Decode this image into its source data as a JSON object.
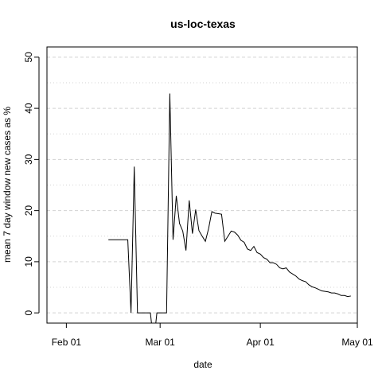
{
  "chart_data": {
    "type": "line",
    "title": "us-loc-texas",
    "xlabel": "date",
    "ylabel": "mean  7  day window new cases as %",
    "x_ticks": [
      "2020-02-01",
      "2020-03-01",
      "2020-04-01",
      "2020-05-01"
    ],
    "x_tick_labels": [
      "Feb 01",
      "Mar 01",
      "Apr 01",
      "May 01"
    ],
    "y_ticks": [
      0,
      10,
      20,
      30,
      40,
      50
    ],
    "y_tick_labels": [
      "0",
      "10",
      "20",
      "30",
      "40",
      "50"
    ],
    "xlim": [
      "2020-01-26",
      "2020-05-01"
    ],
    "ylim": [
      -2,
      52
    ],
    "grid": {
      "horizontal": true,
      "style": "dashed",
      "minor_horizontal": true
    },
    "series": [
      {
        "points": [
          [
            "2020-02-14",
            14.3
          ],
          [
            "2020-02-15",
            14.3
          ],
          [
            "2020-02-16",
            14.3
          ],
          [
            "2020-02-17",
            14.3
          ],
          [
            "2020-02-18",
            14.3
          ],
          [
            "2020-02-19",
            14.3
          ],
          [
            "2020-02-20",
            14.3
          ],
          [
            "2020-02-21",
            0
          ],
          [
            "2020-02-22",
            28.6
          ],
          [
            "2020-02-23",
            0
          ],
          [
            "2020-02-24",
            0
          ],
          [
            "2020-02-25",
            0
          ],
          [
            "2020-02-26",
            0
          ],
          [
            "2020-02-27",
            0
          ],
          [
            "2020-02-28",
            -6
          ],
          [
            "2020-02-29",
            0
          ],
          [
            "2020-03-01",
            0
          ],
          [
            "2020-03-02",
            0
          ],
          [
            "2020-03-03",
            0
          ],
          [
            "2020-03-04",
            42.9
          ],
          [
            "2020-03-05",
            14.3
          ],
          [
            "2020-03-06",
            22.9
          ],
          [
            "2020-03-07",
            17.5
          ],
          [
            "2020-03-08",
            16
          ],
          [
            "2020-03-09",
            12.2
          ],
          [
            "2020-03-10",
            22
          ],
          [
            "2020-03-11",
            15.5
          ],
          [
            "2020-03-12",
            20.2
          ],
          [
            "2020-03-13",
            16.1
          ],
          [
            "2020-03-14",
            15
          ],
          [
            "2020-03-15",
            14
          ],
          [
            "2020-03-16",
            16.5
          ],
          [
            "2020-03-17",
            19.8
          ],
          [
            "2020-03-18",
            19.5
          ],
          [
            "2020-03-19",
            19.4
          ],
          [
            "2020-03-20",
            19.3
          ],
          [
            "2020-03-21",
            14
          ],
          [
            "2020-03-22",
            15
          ],
          [
            "2020-03-23",
            16
          ],
          [
            "2020-03-24",
            15.8
          ],
          [
            "2020-03-25",
            15.2
          ],
          [
            "2020-03-26",
            14.2
          ],
          [
            "2020-03-27",
            13.8
          ],
          [
            "2020-03-28",
            12.5
          ],
          [
            "2020-03-29",
            12.2
          ],
          [
            "2020-03-30",
            13
          ],
          [
            "2020-03-31",
            11.8
          ],
          [
            "2020-04-01",
            11.5
          ],
          [
            "2020-04-02",
            10.8
          ],
          [
            "2020-04-03",
            10.5
          ],
          [
            "2020-04-04",
            9.8
          ],
          [
            "2020-04-05",
            9.8
          ],
          [
            "2020-04-06",
            9.5
          ],
          [
            "2020-04-07",
            8.8
          ],
          [
            "2020-04-08",
            8.6
          ],
          [
            "2020-04-09",
            8.8
          ],
          [
            "2020-04-10",
            8
          ],
          [
            "2020-04-11",
            7.6
          ],
          [
            "2020-04-12",
            7.2
          ],
          [
            "2020-04-13",
            6.6
          ],
          [
            "2020-04-14",
            6.3
          ],
          [
            "2020-04-15",
            6.1
          ],
          [
            "2020-04-16",
            5.5
          ],
          [
            "2020-04-17",
            5.1
          ],
          [
            "2020-04-18",
            4.9
          ],
          [
            "2020-04-19",
            4.6
          ],
          [
            "2020-04-20",
            4.3
          ],
          [
            "2020-04-21",
            4.2
          ],
          [
            "2020-04-22",
            4.1
          ],
          [
            "2020-04-23",
            3.9
          ],
          [
            "2020-04-24",
            3.9
          ],
          [
            "2020-04-25",
            3.7
          ],
          [
            "2020-04-26",
            3.4
          ],
          [
            "2020-04-27",
            3.4
          ],
          [
            "2020-04-28",
            3.2
          ],
          [
            "2020-04-29",
            3.3
          ]
        ]
      }
    ]
  }
}
